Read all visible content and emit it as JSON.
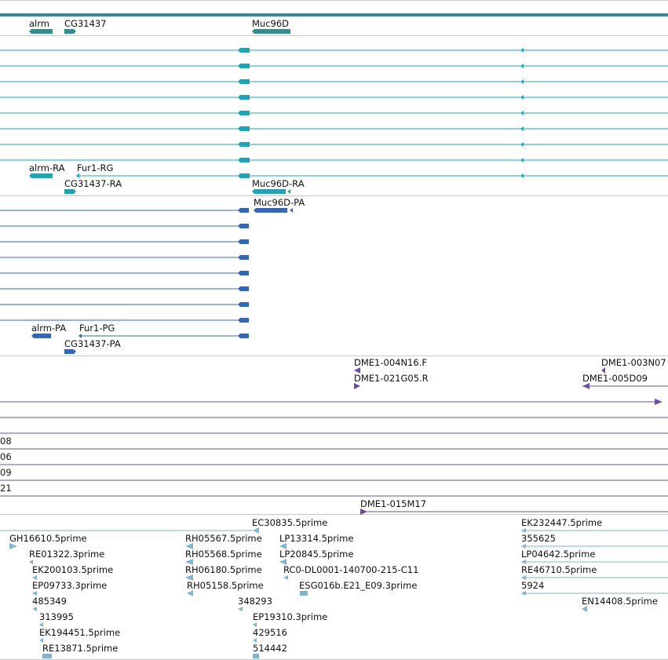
{
  "colors": {
    "gene": "#2f8f8f",
    "transcript": "#17a8b8",
    "protein": "#3066c4",
    "clone": "#6a4fa8",
    "est": "#7fb4d6",
    "separator": "#c8c8c8"
  },
  "tracks": {
    "genes": {
      "labels": [
        {
          "text": "alrm"
        },
        {
          "text": "CG31437"
        },
        {
          "text": "Muc96D"
        }
      ]
    },
    "transcripts": {
      "labels": [
        {
          "text": "alrm-RA"
        },
        {
          "text": "Fur1-RG"
        },
        {
          "text": "CG31437-RA"
        },
        {
          "text": "Muc96D-RA"
        }
      ]
    },
    "proteins": {
      "labels": [
        {
          "text": "Muc96D-PA"
        },
        {
          "text": "alrm-PA"
        },
        {
          "text": "Fur1-PG"
        },
        {
          "text": "CG31437-PA"
        }
      ]
    },
    "clones": {
      "labels": [
        {
          "text": "DME1-004N16.F"
        },
        {
          "text": "DME1-003N07"
        },
        {
          "text": "DME1-021G05.R"
        },
        {
          "text": "DME1-005D09"
        },
        {
          "text": "08"
        },
        {
          "text": "06"
        },
        {
          "text": "09"
        },
        {
          "text": "21"
        },
        {
          "text": "DME1-015M17"
        }
      ]
    },
    "ests": {
      "labels": [
        {
          "text": "EC30835.5prime"
        },
        {
          "text": "EK232447.5prime"
        },
        {
          "text": "GH16610.5prime"
        },
        {
          "text": "RH05567.5prime"
        },
        {
          "text": "LP13314.5prime"
        },
        {
          "text": "355625"
        },
        {
          "text": "RE01322.3prime"
        },
        {
          "text": "RH05568.5prime"
        },
        {
          "text": "LP20845.5prime"
        },
        {
          "text": "LP04642.5prime"
        },
        {
          "text": "EK200103.5prime"
        },
        {
          "text": "RH06180.5prime"
        },
        {
          "text": "RC0-DL0001-140700-215-C11"
        },
        {
          "text": "RE46710.5prime"
        },
        {
          "text": "EP09733.3prime"
        },
        {
          "text": "RH05158.5prime"
        },
        {
          "text": "ESG016b.E21_E09.3prime"
        },
        {
          "text": "5924"
        },
        {
          "text": "485349"
        },
        {
          "text": "348293"
        },
        {
          "text": "EN14408.5prime"
        },
        {
          "text": "313995"
        },
        {
          "text": "EP19310.3prime"
        },
        {
          "text": "EK194451.5prime"
        },
        {
          "text": "429516"
        },
        {
          "text": "RE13871.5prime"
        },
        {
          "text": "514442"
        }
      ]
    }
  }
}
